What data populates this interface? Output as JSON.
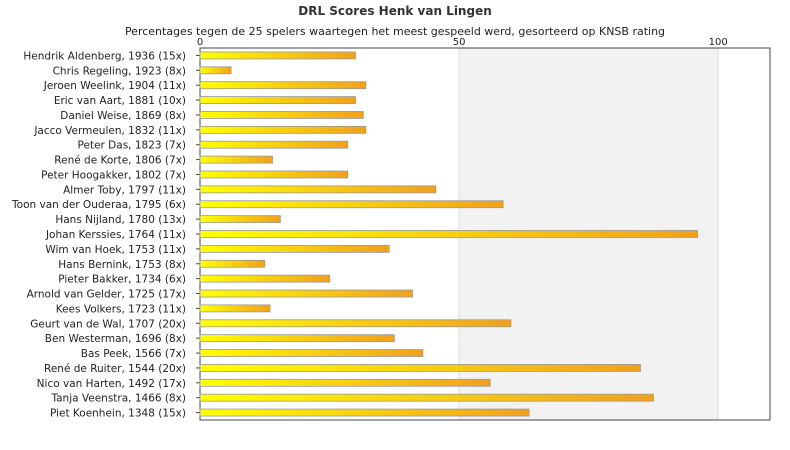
{
  "chart_data": {
    "type": "bar",
    "orientation": "horizontal",
    "title": "DRL Scores Henk van Lingen",
    "subtitle": "Percentages tegen de 25 spelers waartegen het meest gespeeld werd, gesorteerd op KNSB rating",
    "xlim": [
      0,
      110
    ],
    "xticks": [
      0,
      50,
      100
    ],
    "grid": true,
    "categories": [
      "Hendrik Aldenberg, 1936 (15x)",
      "Chris Regeling, 1923 (8x)",
      "Jeroen Weelink, 1904 (11x)",
      "Eric van Aart, 1881 (10x)",
      "Daniel Weise, 1869 (8x)",
      "Jacco Vermeulen, 1832 (11x)",
      "Peter Das, 1823 (7x)",
      "René de Korte, 1806 (7x)",
      "Peter Hoogakker, 1802 (7x)",
      "Almer Toby, 1797 (11x)",
      "Toon van der Ouderaa, 1795 (6x)",
      "Hans Nijland, 1780 (13x)",
      "Johan Kerssies, 1764 (11x)",
      "Wim van Hoek, 1753 (11x)",
      "Hans Bernink, 1753 (8x)",
      "Pieter Bakker, 1734 (6x)",
      "Arnold van Gelder, 1725 (17x)",
      "Kees Volkers, 1723 (11x)",
      "Geurt van de Wal, 1707 (20x)",
      "Ben Westerman, 1696 (8x)",
      "Bas Peek, 1566 (7x)",
      "René de Ruiter, 1544 (20x)",
      "Nico van Harten, 1492 (17x)",
      "Tanja Veenstra, 1466 (8x)",
      "Piet Koenhein, 1348 (15x)"
    ],
    "values": [
      30,
      6,
      32,
      30,
      31.5,
      32,
      28.5,
      14,
      28.5,
      45.5,
      58.5,
      15.5,
      96,
      36.5,
      12.5,
      25,
      41,
      13.5,
      60,
      37.5,
      43,
      85,
      56,
      87.5,
      63.5
    ],
    "colors": {
      "bar_start": "#ffff00",
      "bar_end": "#f0a020",
      "bar_edge": "#9a9a9a"
    }
  }
}
